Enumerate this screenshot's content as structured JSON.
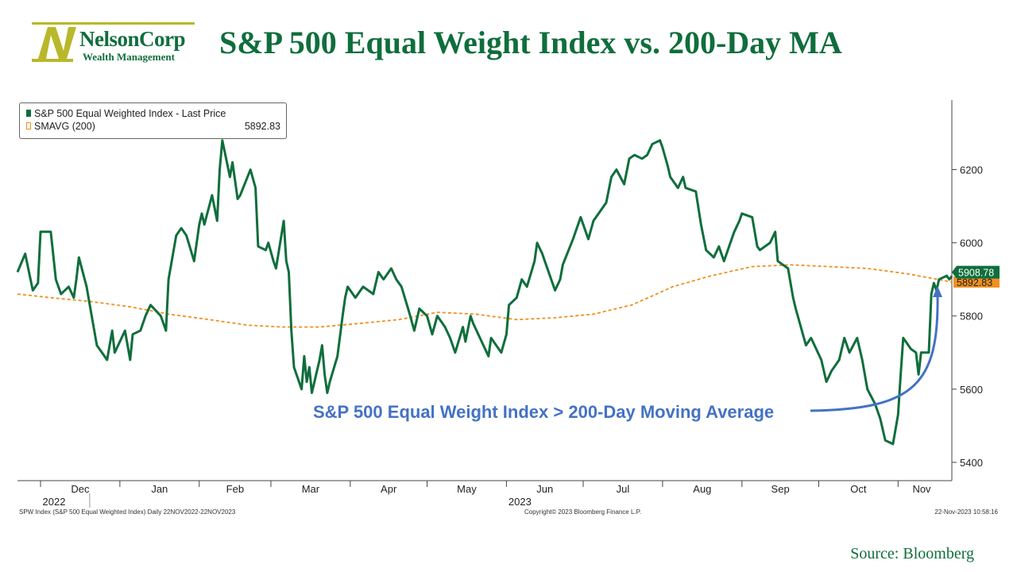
{
  "header": {
    "logo_name": "NelsonCorp",
    "logo_sub": "Wealth Management",
    "title": "S&P 500 Equal Weight Index vs. 200-Day MA"
  },
  "legend": {
    "series1_label": "S&P 500 Equal Weighted Index - Last Price",
    "series2_label": "SMAVG (200)",
    "series2_value": "5892.83"
  },
  "annotation": "S&P 500 Equal Weight Index > 200-Day Moving Average",
  "last_labels": {
    "price": "5908.78",
    "ma": "5892.83"
  },
  "footer": {
    "left": "SPW Index (S&P 500 Equal Weighted Index) Daily 22NOV2022-22NOV2023",
    "center": "Copyright© 2023 Bloomberg Finance L.P.",
    "right": "22-Nov-2023 10:58:16"
  },
  "source": "Source: Bloomberg",
  "colors": {
    "price": "#0f6e3c",
    "ma": "#f0901e",
    "annotation": "#4472c4",
    "title": "#0f6e3c"
  },
  "chart_data": {
    "type": "line",
    "x_axis": {
      "month_ticks": [
        "Dec",
        "Jan",
        "Feb",
        "Mar",
        "Apr",
        "May",
        "Jun",
        "Jul",
        "Aug",
        "Sep",
        "Oct",
        "Nov"
      ],
      "year_ticks": [
        "2022",
        "2023"
      ],
      "range": [
        "2022-11-22",
        "2023-11-22"
      ]
    },
    "y_axis": {
      "ticks": [
        5400,
        5600,
        5800,
        6000,
        6200
      ],
      "range": [
        5350,
        6390
      ],
      "position": "right"
    },
    "series": [
      {
        "name": "S&P 500 Equal Weighted Index - Last Price",
        "color": "#0f6e3c",
        "points": [
          [
            "2022-11-22",
            5920
          ],
          [
            "2022-11-25",
            5970
          ],
          [
            "2022-11-28",
            5870
          ],
          [
            "2022-11-30",
            5890
          ],
          [
            "2022-12-01",
            6030
          ],
          [
            "2022-12-05",
            6030
          ],
          [
            "2022-12-07",
            5900
          ],
          [
            "2022-12-09",
            5860
          ],
          [
            "2022-12-12",
            5880
          ],
          [
            "2022-12-14",
            5850
          ],
          [
            "2022-12-15",
            5900
          ],
          [
            "2022-12-16",
            5960
          ],
          [
            "2022-12-19",
            5880
          ],
          [
            "2022-12-21",
            5800
          ],
          [
            "2022-12-23",
            5720
          ],
          [
            "2022-12-27",
            5680
          ],
          [
            "2022-12-29",
            5760
          ],
          [
            "2022-12-30",
            5700
          ],
          [
            "2023-01-03",
            5760
          ],
          [
            "2023-01-05",
            5680
          ],
          [
            "2023-01-06",
            5750
          ],
          [
            "2023-01-09",
            5760
          ],
          [
            "2023-01-11",
            5800
          ],
          [
            "2023-01-13",
            5830
          ],
          [
            "2023-01-17",
            5800
          ],
          [
            "2023-01-19",
            5760
          ],
          [
            "2023-01-20",
            5900
          ],
          [
            "2023-01-23",
            6020
          ],
          [
            "2023-01-25",
            6040
          ],
          [
            "2023-01-27",
            6020
          ],
          [
            "2023-01-30",
            5950
          ],
          [
            "2023-02-01",
            6050
          ],
          [
            "2023-02-02",
            6080
          ],
          [
            "2023-02-03",
            6050
          ],
          [
            "2023-02-06",
            6130
          ],
          [
            "2023-02-08",
            6060
          ],
          [
            "2023-02-09",
            6200
          ],
          [
            "2023-02-10",
            6280
          ],
          [
            "2023-02-13",
            6180
          ],
          [
            "2023-02-14",
            6220
          ],
          [
            "2023-02-16",
            6120
          ],
          [
            "2023-02-17",
            6130
          ],
          [
            "2023-02-21",
            6200
          ],
          [
            "2023-02-23",
            6150
          ],
          [
            "2023-02-24",
            5990
          ],
          [
            "2023-02-27",
            5980
          ],
          [
            "2023-02-28",
            6000
          ],
          [
            "2023-03-02",
            5950
          ],
          [
            "2023-03-03",
            5930
          ],
          [
            "2023-03-06",
            6060
          ],
          [
            "2023-03-07",
            5950
          ],
          [
            "2023-03-08",
            5920
          ],
          [
            "2023-03-09",
            5760
          ],
          [
            "2023-03-10",
            5660
          ],
          [
            "2023-03-13",
            5600
          ],
          [
            "2023-03-14",
            5690
          ],
          [
            "2023-03-15",
            5620
          ],
          [
            "2023-03-16",
            5660
          ],
          [
            "2023-03-17",
            5590
          ],
          [
            "2023-03-20",
            5680
          ],
          [
            "2023-03-21",
            5720
          ],
          [
            "2023-03-22",
            5640
          ],
          [
            "2023-03-23",
            5590
          ],
          [
            "2023-03-24",
            5620
          ],
          [
            "2023-03-27",
            5690
          ],
          [
            "2023-03-29",
            5800
          ],
          [
            "2023-03-30",
            5850
          ],
          [
            "2023-03-31",
            5880
          ],
          [
            "2023-04-03",
            5850
          ],
          [
            "2023-04-06",
            5880
          ],
          [
            "2023-04-10",
            5860
          ],
          [
            "2023-04-12",
            5920
          ],
          [
            "2023-04-14",
            5900
          ],
          [
            "2023-04-17",
            5930
          ],
          [
            "2023-04-19",
            5900
          ],
          [
            "2023-04-21",
            5880
          ],
          [
            "2023-04-24",
            5810
          ],
          [
            "2023-04-26",
            5760
          ],
          [
            "2023-04-28",
            5820
          ],
          [
            "2023-05-01",
            5800
          ],
          [
            "2023-05-03",
            5750
          ],
          [
            "2023-05-05",
            5800
          ],
          [
            "2023-05-08",
            5770
          ],
          [
            "2023-05-10",
            5740
          ],
          [
            "2023-05-12",
            5700
          ],
          [
            "2023-05-15",
            5770
          ],
          [
            "2023-05-16",
            5730
          ],
          [
            "2023-05-18",
            5800
          ],
          [
            "2023-05-19",
            5780
          ],
          [
            "2023-05-23",
            5720
          ],
          [
            "2023-05-25",
            5690
          ],
          [
            "2023-05-26",
            5740
          ],
          [
            "2023-05-30",
            5700
          ],
          [
            "2023-06-01",
            5750
          ],
          [
            "2023-06-02",
            5830
          ],
          [
            "2023-06-05",
            5850
          ],
          [
            "2023-06-07",
            5900
          ],
          [
            "2023-06-09",
            5880
          ],
          [
            "2023-06-12",
            5950
          ],
          [
            "2023-06-13",
            6000
          ],
          [
            "2023-06-15",
            5970
          ],
          [
            "2023-06-16",
            5950
          ],
          [
            "2023-06-20",
            5870
          ],
          [
            "2023-06-22",
            5900
          ],
          [
            "2023-06-23",
            5940
          ],
          [
            "2023-06-27",
            6010
          ],
          [
            "2023-06-29",
            6050
          ],
          [
            "2023-06-30",
            6070
          ],
          [
            "2023-07-03",
            6010
          ],
          [
            "2023-07-05",
            6060
          ],
          [
            "2023-07-07",
            6080
          ],
          [
            "2023-07-10",
            6110
          ],
          [
            "2023-07-12",
            6180
          ],
          [
            "2023-07-14",
            6200
          ],
          [
            "2023-07-17",
            6160
          ],
          [
            "2023-07-19",
            6230
          ],
          [
            "2023-07-21",
            6240
          ],
          [
            "2023-07-24",
            6230
          ],
          [
            "2023-07-26",
            6240
          ],
          [
            "2023-07-28",
            6270
          ],
          [
            "2023-07-31",
            6280
          ],
          [
            "2023-08-01",
            6260
          ],
          [
            "2023-08-03",
            6210
          ],
          [
            "2023-08-04",
            6180
          ],
          [
            "2023-08-07",
            6150
          ],
          [
            "2023-08-09",
            6180
          ],
          [
            "2023-08-10",
            6150
          ],
          [
            "2023-08-14",
            6140
          ],
          [
            "2023-08-16",
            6050
          ],
          [
            "2023-08-18",
            5980
          ],
          [
            "2023-08-21",
            5960
          ],
          [
            "2023-08-23",
            5990
          ],
          [
            "2023-08-25",
            5950
          ],
          [
            "2023-08-29",
            6030
          ],
          [
            "2023-08-31",
            6060
          ],
          [
            "2023-09-01",
            6080
          ],
          [
            "2023-09-05",
            6070
          ],
          [
            "2023-09-07",
            5990
          ],
          [
            "2023-09-08",
            5980
          ],
          [
            "2023-09-12",
            6000
          ],
          [
            "2023-09-14",
            6030
          ],
          [
            "2023-09-15",
            5950
          ],
          [
            "2023-09-19",
            5930
          ],
          [
            "2023-09-21",
            5850
          ],
          [
            "2023-09-22",
            5820
          ],
          [
            "2023-09-26",
            5720
          ],
          [
            "2023-09-28",
            5740
          ],
          [
            "2023-10-02",
            5680
          ],
          [
            "2023-10-04",
            5620
          ],
          [
            "2023-10-06",
            5650
          ],
          [
            "2023-10-09",
            5680
          ],
          [
            "2023-10-11",
            5740
          ],
          [
            "2023-10-13",
            5700
          ],
          [
            "2023-10-16",
            5740
          ],
          [
            "2023-10-18",
            5680
          ],
          [
            "2023-10-20",
            5600
          ],
          [
            "2023-10-23",
            5560
          ],
          [
            "2023-10-25",
            5520
          ],
          [
            "2023-10-27",
            5460
          ],
          [
            "2023-10-30",
            5450
          ],
          [
            "2023-11-01",
            5530
          ],
          [
            "2023-11-02",
            5640
          ],
          [
            "2023-11-03",
            5740
          ],
          [
            "2023-11-06",
            5710
          ],
          [
            "2023-11-08",
            5700
          ],
          [
            "2023-11-09",
            5640
          ],
          [
            "2023-11-10",
            5700
          ],
          [
            "2023-11-13",
            5700
          ],
          [
            "2023-11-14",
            5860
          ],
          [
            "2023-11-15",
            5890
          ],
          [
            "2023-11-16",
            5870
          ],
          [
            "2023-11-17",
            5900
          ],
          [
            "2023-11-20",
            5910
          ],
          [
            "2023-11-21",
            5900
          ],
          [
            "2023-11-22",
            5908.78
          ]
        ]
      },
      {
        "name": "SMAVG (200)",
        "color": "#f0901e",
        "dashed": true,
        "points": [
          [
            "2022-11-22",
            5860
          ],
          [
            "2022-12-05",
            5850
          ],
          [
            "2022-12-20",
            5840
          ],
          [
            "2023-01-05",
            5825
          ],
          [
            "2023-01-20",
            5805
          ],
          [
            "2023-02-05",
            5790
          ],
          [
            "2023-02-20",
            5775
          ],
          [
            "2023-03-05",
            5770
          ],
          [
            "2023-03-20",
            5770
          ],
          [
            "2023-04-05",
            5780
          ],
          [
            "2023-04-20",
            5790
          ],
          [
            "2023-05-05",
            5810
          ],
          [
            "2023-05-20",
            5805
          ],
          [
            "2023-06-05",
            5790
          ],
          [
            "2023-06-20",
            5795
          ],
          [
            "2023-07-05",
            5805
          ],
          [
            "2023-07-20",
            5830
          ],
          [
            "2023-08-05",
            5880
          ],
          [
            "2023-08-20",
            5910
          ],
          [
            "2023-09-05",
            5935
          ],
          [
            "2023-09-20",
            5940
          ],
          [
            "2023-10-05",
            5935
          ],
          [
            "2023-10-20",
            5930
          ],
          [
            "2023-11-05",
            5915
          ],
          [
            "2023-11-22",
            5892.83
          ]
        ]
      }
    ],
    "annotation": "S&P 500 Equal Weight Index > 200-Day Moving Average",
    "grid": false,
    "legend_position": "top-left"
  }
}
